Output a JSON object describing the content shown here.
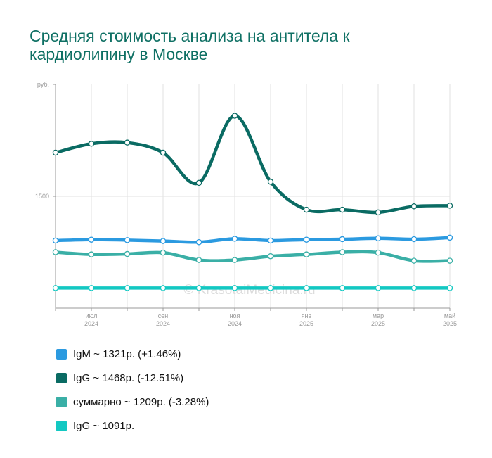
{
  "title": "Средняя стоимость анализа на антитела к кардиолипину в Москве",
  "watermark": "© KrasotaiMedicina.ru",
  "chart_data": {
    "type": "line",
    "title": "Средняя стоимость анализа на антитела к кардиолипину в Москве",
    "ylabel": "руб.",
    "ylim": [
      1000,
      2000
    ],
    "yticks": [
      1500
    ],
    "grid": true,
    "legend_position": "bottom",
    "x_ticks": [
      {
        "index": 1,
        "month": "июл",
        "year": "2024"
      },
      {
        "index": 3,
        "month": "сен",
        "year": "2024"
      },
      {
        "index": 5,
        "month": "ноя",
        "year": "2024"
      },
      {
        "index": 7,
        "month": "янв",
        "year": "2025"
      },
      {
        "index": 9,
        "month": "мар",
        "year": "2025"
      },
      {
        "index": 11,
        "month": "май",
        "year": "2025"
      }
    ],
    "series": [
      {
        "name": "IgM ~ 1321р. (+1.46%)",
        "color": "#2b9ae0",
        "values": [
          1302,
          1306,
          1304,
          1300,
          1295,
          1310,
          1302,
          1306,
          1308,
          1312,
          1308,
          1315
        ]
      },
      {
        "name": "IgG ~ 1468р. (-12.51%)",
        "color": "#0a6b63",
        "values": [
          1695,
          1735,
          1740,
          1695,
          1560,
          1860,
          1565,
          1440,
          1440,
          1428,
          1455,
          1458
        ]
      },
      {
        "name": "суммарно ~ 1209р. (-3.28%)",
        "color": "#3aafa6",
        "values": [
          1250,
          1240,
          1242,
          1248,
          1215,
          1215,
          1232,
          1240,
          1250,
          1248,
          1212,
          1212
        ]
      },
      {
        "name": "IgG ~ 1091р.",
        "color": "#13c8c2",
        "values": [
          1090,
          1090,
          1090,
          1090,
          1090,
          1090,
          1090,
          1090,
          1090,
          1090,
          1090,
          1090
        ]
      }
    ]
  }
}
